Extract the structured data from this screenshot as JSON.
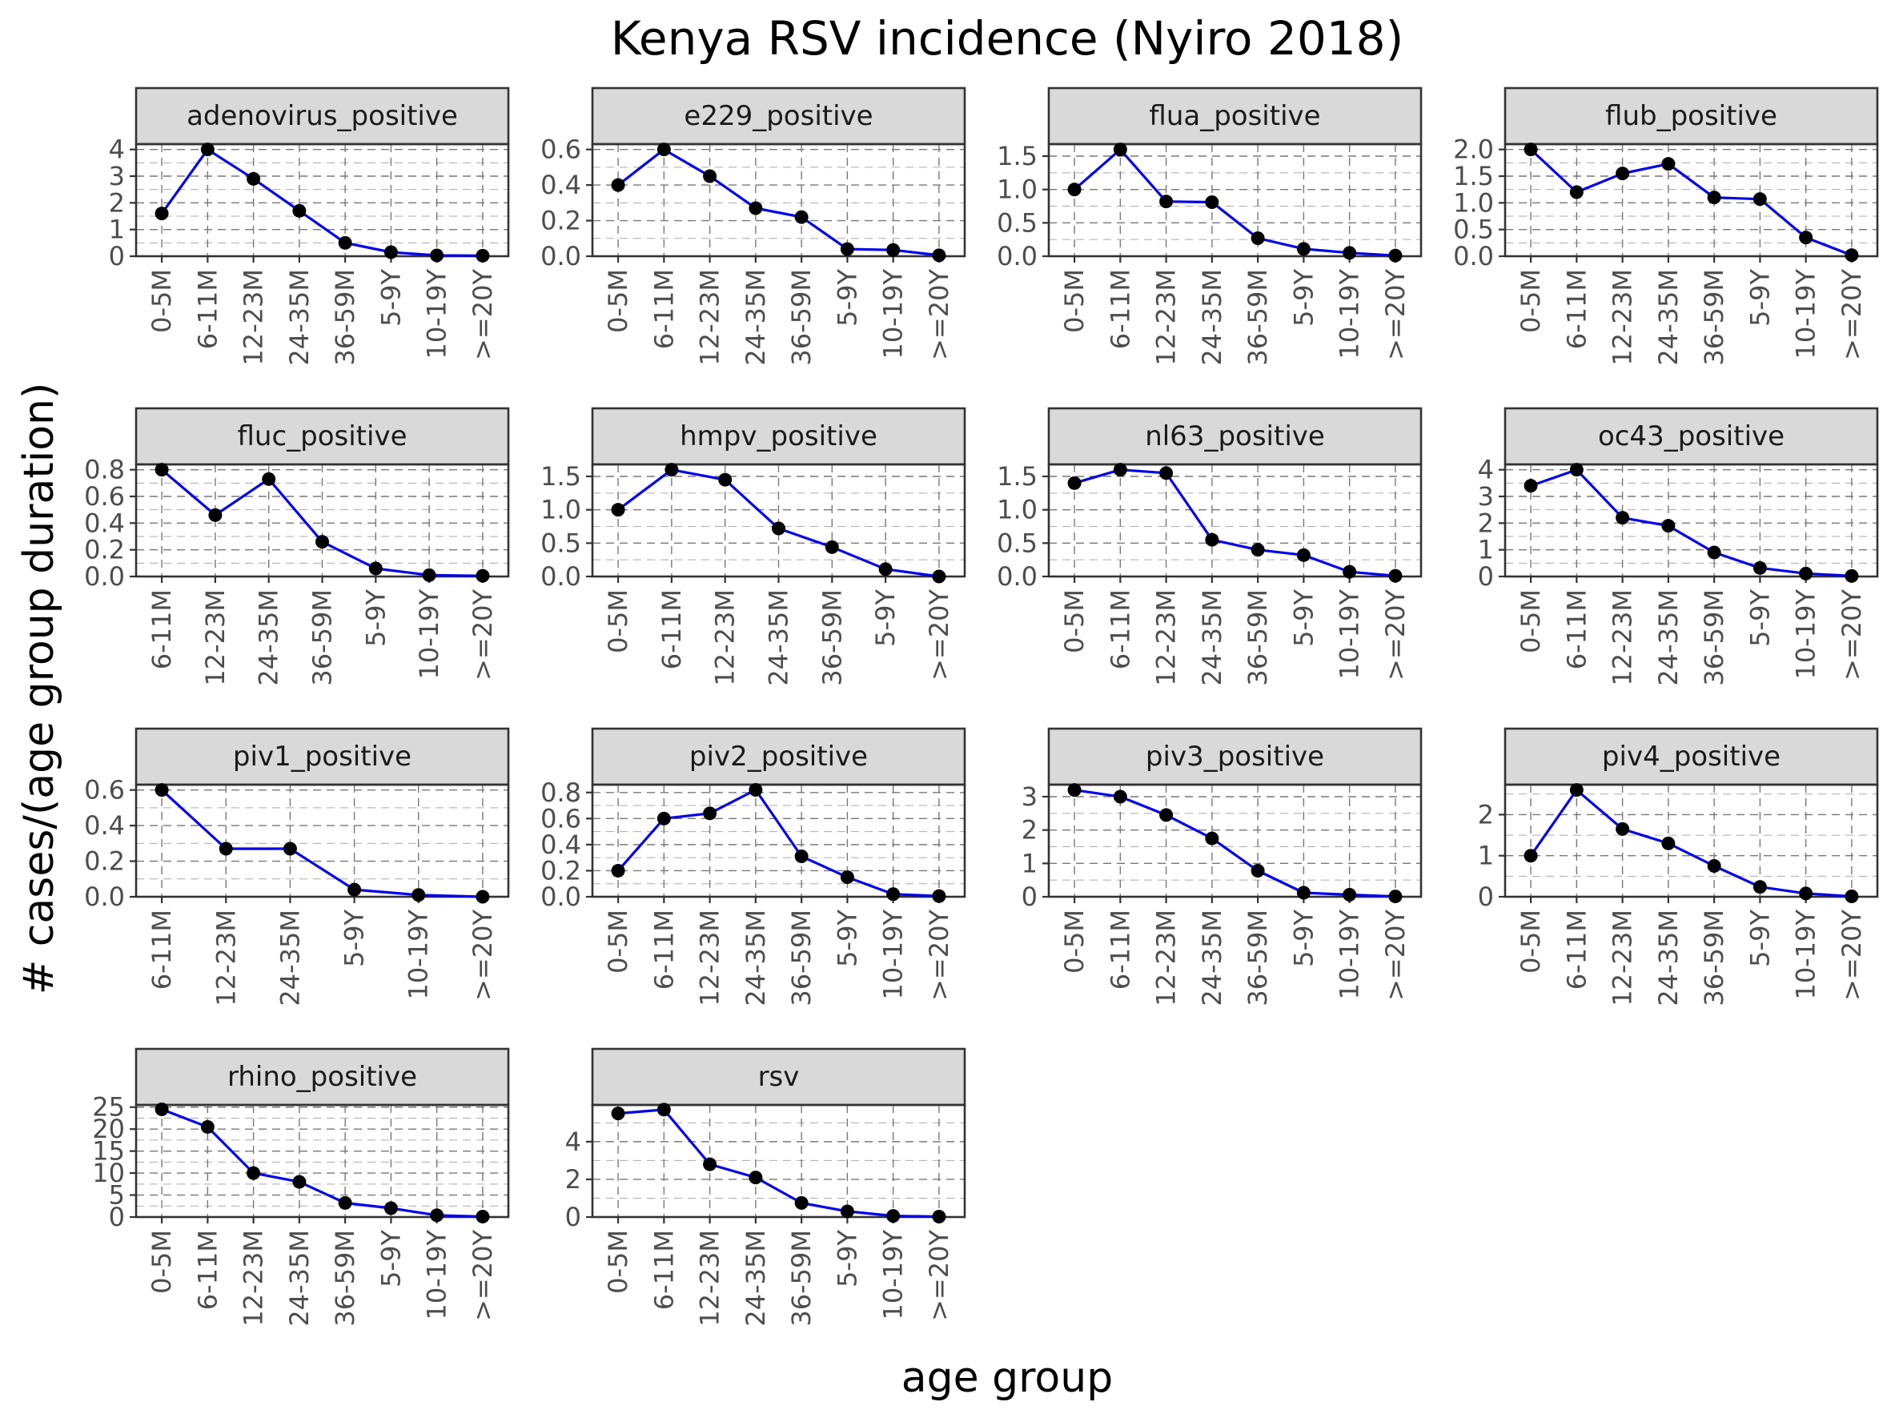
{
  "title": "Kenya RSV incidence (Nyiro 2018)",
  "xlabel": "age group",
  "ylabel": "# cases/(age group duration)",
  "colors": {
    "line": "#0000ee",
    "point": "#000000",
    "strip": "#d9d9d9",
    "panel_border": "#333333",
    "tick_text": "#4d4d4d"
  },
  "chart_data": [
    {
      "type": "line",
      "panel": "adenovirus_positive",
      "categories": [
        "0-5M",
        "6-11M",
        "12-23M",
        "24-35M",
        "36-59M",
        "5-9Y",
        "10-19Y",
        ">=20Y"
      ],
      "values": [
        1.6,
        4.0,
        2.9,
        1.7,
        0.5,
        0.15,
        0.03,
        0.02
      ],
      "yticks": [
        0,
        1,
        2,
        3,
        4
      ],
      "ytick_labels": [
        "0",
        "1",
        "2",
        "3",
        "4"
      ],
      "ylim": [
        0,
        4.2
      ]
    },
    {
      "type": "line",
      "panel": "e229_positive",
      "categories": [
        "0-5M",
        "6-11M",
        "12-23M",
        "24-35M",
        "36-59M",
        "5-9Y",
        "10-19Y",
        ">=20Y"
      ],
      "values": [
        0.4,
        0.6,
        0.45,
        0.27,
        0.22,
        0.04,
        0.035,
        0.005
      ],
      "yticks": [
        0,
        0.2,
        0.4,
        0.6
      ],
      "ytick_labels": [
        "0.0",
        "0.2",
        "0.4",
        "0.6"
      ],
      "ylim": [
        0,
        0.63
      ]
    },
    {
      "type": "line",
      "panel": "flua_positive",
      "categories": [
        "0-5M",
        "6-11M",
        "12-23M",
        "24-35M",
        "36-59M",
        "5-9Y",
        "10-19Y",
        ">=20Y"
      ],
      "values": [
        1.0,
        1.6,
        0.82,
        0.81,
        0.27,
        0.11,
        0.05,
        0.01
      ],
      "yticks": [
        0,
        0.5,
        1.0,
        1.5
      ],
      "ytick_labels": [
        "0.0",
        "0.5",
        "1.0",
        "1.5"
      ],
      "ylim": [
        0,
        1.68
      ]
    },
    {
      "type": "line",
      "panel": "flub_positive",
      "categories": [
        "0-5M",
        "6-11M",
        "12-23M",
        "24-35M",
        "36-59M",
        "5-9Y",
        "10-19Y",
        ">=20Y"
      ],
      "values": [
        2.0,
        1.2,
        1.55,
        1.73,
        1.1,
        1.07,
        0.35,
        0.02
      ],
      "yticks": [
        0,
        0.5,
        1.0,
        1.5,
        2.0
      ],
      "ytick_labels": [
        "0.0",
        "0.5",
        "1.0",
        "1.5",
        "2.0"
      ],
      "ylim": [
        0,
        2.1
      ]
    },
    {
      "type": "line",
      "panel": "fluc_positive",
      "categories": [
        "6-11M",
        "12-23M",
        "24-35M",
        "36-59M",
        "5-9Y",
        "10-19Y",
        ">=20Y"
      ],
      "values": [
        0.8,
        0.46,
        0.73,
        0.26,
        0.06,
        0.01,
        0.005
      ],
      "yticks": [
        0,
        0.2,
        0.4,
        0.6,
        0.8
      ],
      "ytick_labels": [
        "0.0",
        "0.2",
        "0.4",
        "0.6",
        "0.8"
      ],
      "ylim": [
        0,
        0.84
      ]
    },
    {
      "type": "line",
      "panel": "hmpv_positive",
      "categories": [
        "0-5M",
        "6-11M",
        "12-23M",
        "24-35M",
        "36-59M",
        "5-9Y",
        ">=20Y"
      ],
      "values": [
        1.0,
        1.6,
        1.45,
        0.72,
        0.44,
        0.11,
        0.0
      ],
      "yticks": [
        0,
        0.5,
        1.0,
        1.5
      ],
      "ytick_labels": [
        "0.0",
        "0.5",
        "1.0",
        "1.5"
      ],
      "ylim": [
        0,
        1.68
      ]
    },
    {
      "type": "line",
      "panel": "nl63_positive",
      "categories": [
        "0-5M",
        "6-11M",
        "12-23M",
        "24-35M",
        "36-59M",
        "5-9Y",
        "10-19Y",
        ">=20Y"
      ],
      "values": [
        1.4,
        1.6,
        1.55,
        0.55,
        0.4,
        0.32,
        0.07,
        0.01
      ],
      "yticks": [
        0,
        0.5,
        1.0,
        1.5
      ],
      "ytick_labels": [
        "0.0",
        "0.5",
        "1.0",
        "1.5"
      ],
      "ylim": [
        0,
        1.68
      ]
    },
    {
      "type": "line",
      "panel": "oc43_positive",
      "categories": [
        "0-5M",
        "6-11M",
        "12-23M",
        "24-35M",
        "36-59M",
        "5-9Y",
        "10-19Y",
        ">=20Y"
      ],
      "values": [
        3.4,
        4.0,
        2.2,
        1.9,
        0.9,
        0.32,
        0.11,
        0.02
      ],
      "yticks": [
        0,
        1,
        2,
        3,
        4
      ],
      "ytick_labels": [
        "0",
        "1",
        "2",
        "3",
        "4"
      ],
      "ylim": [
        0,
        4.2
      ]
    },
    {
      "type": "line",
      "panel": "piv1_positive",
      "categories": [
        "6-11M",
        "12-23M",
        "24-35M",
        "5-9Y",
        "10-19Y",
        ">=20Y"
      ],
      "values": [
        0.6,
        0.27,
        0.27,
        0.04,
        0.01,
        0.0
      ],
      "yticks": [
        0,
        0.2,
        0.4,
        0.6
      ],
      "ytick_labels": [
        "0.0",
        "0.2",
        "0.4",
        "0.6"
      ],
      "ylim": [
        0,
        0.63
      ]
    },
    {
      "type": "line",
      "panel": "piv2_positive",
      "categories": [
        "0-5M",
        "6-11M",
        "12-23M",
        "24-35M",
        "36-59M",
        "5-9Y",
        "10-19Y",
        ">=20Y"
      ],
      "values": [
        0.2,
        0.6,
        0.64,
        0.82,
        0.31,
        0.15,
        0.02,
        0.005
      ],
      "yticks": [
        0,
        0.2,
        0.4,
        0.6,
        0.8
      ],
      "ytick_labels": [
        "0.0",
        "0.2",
        "0.4",
        "0.6",
        "0.8"
      ],
      "ylim": [
        0,
        0.86
      ]
    },
    {
      "type": "line",
      "panel": "piv3_positive",
      "categories": [
        "0-5M",
        "6-11M",
        "12-23M",
        "24-35M",
        "36-59M",
        "5-9Y",
        "10-19Y",
        ">=20Y"
      ],
      "values": [
        3.2,
        3.0,
        2.45,
        1.75,
        0.78,
        0.12,
        0.06,
        0.01
      ],
      "yticks": [
        0,
        1,
        2,
        3
      ],
      "ytick_labels": [
        "0",
        "1",
        "2",
        "3"
      ],
      "ylim": [
        0,
        3.36
      ]
    },
    {
      "type": "line",
      "panel": "piv4_positive",
      "categories": [
        "0-5M",
        "6-11M",
        "12-23M",
        "24-35M",
        "36-59M",
        "5-9Y",
        "10-19Y",
        ">=20Y"
      ],
      "values": [
        1.0,
        2.6,
        1.65,
        1.3,
        0.75,
        0.24,
        0.08,
        0.01
      ],
      "yticks": [
        0,
        1,
        2
      ],
      "ytick_labels": [
        "0",
        "1",
        "2"
      ],
      "ylim": [
        0,
        2.73
      ]
    },
    {
      "type": "line",
      "panel": "rhino_positive",
      "categories": [
        "0-5M",
        "6-11M",
        "12-23M",
        "24-35M",
        "36-59M",
        "5-9Y",
        "10-19Y",
        ">=20Y"
      ],
      "values": [
        24.5,
        20.5,
        10.0,
        8.0,
        3.2,
        2.0,
        0.4,
        0.1
      ],
      "yticks": [
        0,
        5,
        10,
        15,
        20,
        25
      ],
      "ytick_labels": [
        "0",
        "5",
        "10",
        "15",
        "20",
        "25"
      ],
      "ylim": [
        0,
        25.5
      ]
    },
    {
      "type": "line",
      "panel": "rsv",
      "categories": [
        "0-5M",
        "6-11M",
        "12-23M",
        "24-35M",
        "36-59M",
        "5-9Y",
        "10-19Y",
        ">=20Y"
      ],
      "values": [
        5.5,
        5.7,
        2.8,
        2.1,
        0.75,
        0.3,
        0.06,
        0.02
      ],
      "yticks": [
        0,
        2,
        4
      ],
      "ytick_labels": [
        "0",
        "2",
        "4"
      ],
      "ylim": [
        0,
        5.95
      ]
    }
  ]
}
